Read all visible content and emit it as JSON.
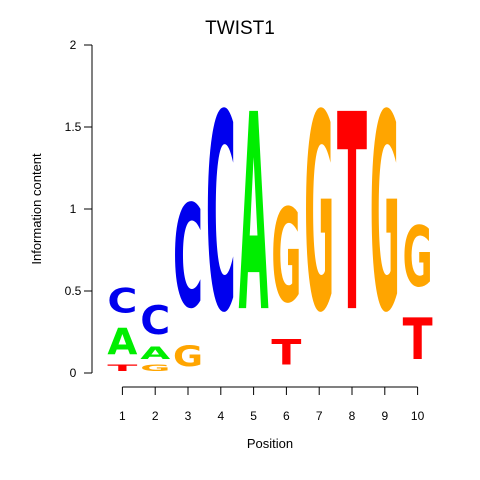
{
  "chart_data": {
    "type": "sequence-logo",
    "title": "TWIST1",
    "xlabel": "Position",
    "ylabel": "Information content",
    "ylim": [
      0,
      2
    ],
    "yticks": [
      "0",
      "0.5",
      "1",
      "1.5",
      "2"
    ],
    "yticks_values": [
      0,
      0.5,
      1,
      1.5,
      2
    ],
    "positions": [
      "1",
      "2",
      "3",
      "4",
      "5",
      "6",
      "7",
      "8",
      "9",
      "10"
    ],
    "colors": {
      "A": "#00ee00",
      "C": "#0000ee",
      "G": "#ffa500",
      "T": "#ff0000"
    },
    "columns": [
      [
        {
          "base": "T",
          "value": 0.06
        },
        {
          "base": "A",
          "value": 0.26
        },
        {
          "base": "C",
          "value": 0.24
        }
      ],
      [
        {
          "base": "G",
          "value": 0.06
        },
        {
          "base": "A",
          "value": 0.12
        },
        {
          "base": "C",
          "value": 0.28
        }
      ],
      [
        {
          "base": "G",
          "value": 0.2
        },
        {
          "base": "C",
          "value": 1.01
        }
      ],
      [
        {
          "base": "C",
          "value": 1.93
        }
      ],
      [
        {
          "base": "A",
          "value": 1.93
        }
      ],
      [
        {
          "base": "T",
          "value": 0.25
        },
        {
          "base": "G",
          "value": 0.92
        }
      ],
      [
        {
          "base": "G",
          "value": 1.93
        }
      ],
      [
        {
          "base": "T",
          "value": 1.93
        }
      ],
      [
        {
          "base": "G",
          "value": 1.93
        }
      ],
      [
        {
          "base": "T",
          "value": 0.41
        },
        {
          "base": "G",
          "value": 0.59
        }
      ]
    ]
  }
}
